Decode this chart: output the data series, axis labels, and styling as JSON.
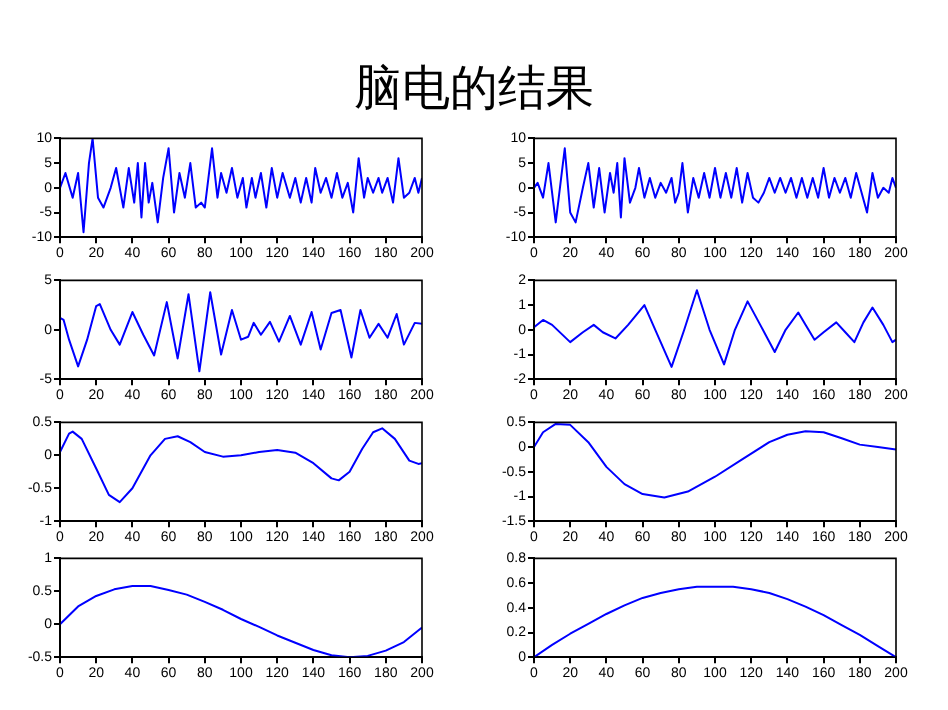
{
  "chart_data": [
    {
      "type": "line",
      "title": "脑电的结果",
      "color": "#0000ff",
      "xlim": [
        0,
        200
      ],
      "xticks": [
        0,
        20,
        40,
        60,
        80,
        100,
        120,
        140,
        160,
        180,
        200
      ],
      "ylim": [
        -10,
        10
      ],
      "yticks": [
        -10,
        -5,
        0,
        5,
        10
      ],
      "x": [
        0,
        3,
        7,
        10,
        13,
        16,
        18,
        21,
        24,
        28,
        31,
        35,
        38,
        41,
        43,
        45,
        47,
        49,
        51,
        54,
        57,
        60,
        63,
        66,
        69,
        72,
        75,
        78,
        80,
        84,
        87,
        89,
        92,
        95,
        98,
        101,
        103,
        106,
        108,
        111,
        114,
        117,
        120,
        123,
        127,
        130,
        133,
        136,
        139,
        141,
        144,
        147,
        150,
        153,
        156,
        159,
        162,
        165,
        168,
        170,
        173,
        176,
        178,
        181,
        184,
        187,
        190,
        193,
        196,
        198,
        200
      ],
      "values": [
        0,
        3,
        -2,
        3,
        -9,
        5,
        10,
        -2,
        -4,
        0,
        4,
        -4,
        4,
        -3,
        5,
        -6,
        5,
        -3,
        1,
        -7,
        2,
        8,
        -5,
        3,
        -2,
        5,
        -4,
        -3,
        -4,
        8,
        -2,
        3,
        -1,
        4,
        -2,
        2,
        -4,
        2,
        -2,
        3,
        -4,
        4,
        -2,
        3,
        -2,
        2,
        -3,
        2,
        -3,
        4,
        -1,
        2,
        -2,
        3,
        -2,
        1,
        -5,
        6,
        -2,
        2,
        -1,
        2,
        -1,
        2,
        -3,
        6,
        -2,
        -1,
        2,
        -1,
        2
      ]
    },
    {
      "type": "line",
      "color": "#0000ff",
      "xlim": [
        0,
        200
      ],
      "xticks": [
        0,
        20,
        40,
        60,
        80,
        100,
        120,
        140,
        160,
        180,
        200
      ],
      "ylim": [
        -10,
        10
      ],
      "yticks": [
        -10,
        -5,
        0,
        5,
        10
      ],
      "x": [
        0,
        2,
        5,
        8,
        12,
        15,
        17,
        20,
        23,
        27,
        30,
        33,
        36,
        39,
        42,
        44,
        46,
        48,
        50,
        53,
        56,
        58,
        61,
        64,
        67,
        70,
        73,
        76,
        78,
        80,
        82,
        85,
        88,
        91,
        94,
        97,
        100,
        103,
        106,
        109,
        112,
        115,
        118,
        121,
        124,
        127,
        130,
        133,
        136,
        139,
        142,
        145,
        148,
        151,
        154,
        157,
        160,
        163,
        166,
        169,
        172,
        175,
        178,
        181,
        184,
        187,
        190,
        193,
        196,
        198,
        200
      ],
      "values": [
        0,
        1,
        -2,
        5,
        -7,
        2,
        8,
        -5,
        -7,
        0,
        5,
        -4,
        4,
        -5,
        3,
        -1,
        5,
        -6,
        6,
        -3,
        0,
        4,
        -2,
        2,
        -2,
        1,
        -1,
        2,
        -3,
        -1,
        5,
        -5,
        2,
        -2,
        3,
        -2,
        4,
        -2,
        3,
        -2,
        4,
        -3,
        3,
        -2,
        -3,
        -1,
        2,
        -1,
        2,
        -1,
        2,
        -2,
        2,
        -2,
        2,
        -2,
        4,
        -2,
        2,
        -1,
        2,
        -2,
        3,
        -1,
        -5,
        3,
        -2,
        0,
        -1,
        2,
        0
      ]
    },
    {
      "type": "line",
      "color": "#0000ff",
      "xlim": [
        0,
        200
      ],
      "xticks": [
        0,
        20,
        40,
        60,
        80,
        100,
        120,
        140,
        160,
        180,
        200
      ],
      "ylim": [
        -5,
        5
      ],
      "yticks": [
        -5,
        0,
        5
      ],
      "x": [
        0,
        2,
        5,
        10,
        15,
        20,
        22,
        28,
        33,
        40,
        46,
        52,
        59,
        65,
        71,
        77,
        83,
        89,
        95,
        100,
        104,
        107,
        111,
        116,
        121,
        127,
        133,
        139,
        144,
        150,
        155,
        161,
        166,
        171,
        176,
        181,
        186,
        190,
        196,
        200
      ],
      "values": [
        1.2,
        1,
        -1,
        -3.7,
        -1,
        2.4,
        2.6,
        0,
        -1.5,
        1.8,
        -0.5,
        -2.6,
        2.8,
        -2.9,
        3.6,
        -4.2,
        3.8,
        -2.5,
        2,
        -1,
        -0.7,
        0.7,
        -0.5,
        0.8,
        -1.2,
        1.4,
        -1.5,
        1.8,
        -2,
        1.7,
        2,
        -2.8,
        2,
        -0.8,
        0.6,
        -0.8,
        1.6,
        -1.5,
        0.7,
        0.6
      ]
    },
    {
      "type": "line",
      "color": "#0000ff",
      "xlim": [
        0,
        200
      ],
      "xticks": [
        0,
        20,
        40,
        60,
        80,
        100,
        120,
        140,
        160,
        180,
        200
      ],
      "ylim": [
        -2,
        2
      ],
      "yticks": [
        -2,
        -1,
        0,
        1,
        2
      ],
      "x": [
        0,
        5,
        10,
        20,
        27,
        33,
        38,
        45,
        52,
        61,
        67,
        76,
        83,
        90,
        97,
        105,
        111,
        118,
        125,
        133,
        139,
        146,
        150,
        155,
        160,
        167,
        172,
        177,
        182,
        187,
        193,
        198,
        200
      ],
      "values": [
        0.1,
        0.4,
        0.2,
        -0.5,
        -0.1,
        0.2,
        -0.1,
        -0.35,
        0.2,
        1,
        0,
        -1.5,
        0,
        1.6,
        0,
        -1.4,
        0,
        1.15,
        0.2,
        -0.9,
        0,
        0.7,
        0.2,
        -0.4,
        -0.1,
        0.3,
        -0.1,
        -0.5,
        0.3,
        0.9,
        0.2,
        -0.5,
        -0.4
      ]
    },
    {
      "type": "line",
      "color": "#0000ff",
      "xlim": [
        0,
        200
      ],
      "xticks": [
        0,
        20,
        40,
        60,
        80,
        100,
        120,
        140,
        160,
        180,
        200
      ],
      "ylim": [
        -1,
        0.5
      ],
      "yticks": [
        -1,
        -0.5,
        0,
        0.5
      ],
      "x": [
        0,
        5,
        7,
        12,
        20,
        27,
        33,
        40,
        50,
        58,
        65,
        72,
        80,
        90,
        100,
        110,
        120,
        130,
        140,
        150,
        154,
        160,
        167,
        173,
        178,
        185,
        193,
        198,
        200
      ],
      "values": [
        0.05,
        0.33,
        0.36,
        0.25,
        -0.2,
        -0.6,
        -0.71,
        -0.5,
        0,
        0.25,
        0.29,
        0.2,
        0.05,
        -0.02,
        0,
        0.05,
        0.08,
        0.04,
        -0.12,
        -0.35,
        -0.38,
        -0.25,
        0.1,
        0.35,
        0.41,
        0.25,
        -0.08,
        -0.13,
        -0.12
      ]
    },
    {
      "type": "line",
      "color": "#0000ff",
      "xlim": [
        0,
        200
      ],
      "xticks": [
        0,
        20,
        40,
        60,
        80,
        100,
        120,
        140,
        160,
        180,
        200
      ],
      "ylim": [
        -1.5,
        0.5
      ],
      "yticks": [
        -1.5,
        -1,
        -0.5,
        0,
        0.5
      ],
      "x": [
        0,
        5,
        12,
        20,
        30,
        40,
        50,
        60,
        72,
        85,
        100,
        115,
        130,
        140,
        150,
        160,
        170,
        180,
        190,
        200
      ],
      "values": [
        0,
        0.3,
        0.47,
        0.45,
        0.1,
        -0.4,
        -0.75,
        -0.95,
        -1.02,
        -0.9,
        -0.6,
        -0.25,
        0.1,
        0.25,
        0.32,
        0.3,
        0.18,
        0.05,
        0,
        -0.05
      ]
    },
    {
      "type": "line",
      "color": "#0000ff",
      "xlim": [
        0,
        200
      ],
      "xticks": [
        0,
        20,
        40,
        60,
        80,
        100,
        120,
        140,
        160,
        180,
        200
      ],
      "ylim": [
        -0.5,
        1
      ],
      "yticks": [
        -0.5,
        0,
        0.5,
        1
      ],
      "x": [
        0,
        10,
        20,
        30,
        40,
        50,
        60,
        70,
        80,
        90,
        100,
        110,
        120,
        130,
        140,
        150,
        160,
        170,
        180,
        190,
        200
      ],
      "values": [
        0,
        0.27,
        0.43,
        0.53,
        0.58,
        0.58,
        0.52,
        0.45,
        0.34,
        0.22,
        0.08,
        -0.04,
        -0.17,
        -0.28,
        -0.39,
        -0.47,
        -0.5,
        -0.48,
        -0.4,
        -0.27,
        -0.05
      ]
    },
    {
      "type": "line",
      "color": "#0000ff",
      "xlim": [
        0,
        200
      ],
      "xticks": [
        0,
        20,
        40,
        60,
        80,
        100,
        120,
        140,
        160,
        180,
        200
      ],
      "ylim": [
        0,
        0.8
      ],
      "yticks": [
        0,
        0.2,
        0.4,
        0.6,
        0.8
      ],
      "x": [
        0,
        10,
        20,
        30,
        40,
        50,
        60,
        70,
        80,
        90,
        100,
        110,
        120,
        130,
        140,
        150,
        160,
        170,
        180,
        190,
        200
      ],
      "values": [
        0,
        0.1,
        0.19,
        0.27,
        0.35,
        0.42,
        0.48,
        0.52,
        0.55,
        0.57,
        0.57,
        0.57,
        0.55,
        0.52,
        0.47,
        0.41,
        0.34,
        0.26,
        0.18,
        0.09,
        0
      ]
    }
  ]
}
